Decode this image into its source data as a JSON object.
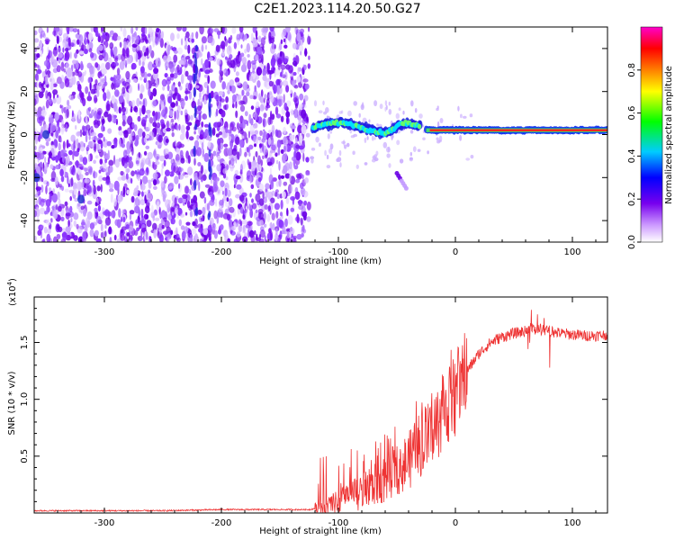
{
  "figure": {
    "title": "C2E1.2023.114.20.50.G27"
  },
  "colors": {
    "snr_line": "#ee3333",
    "axis": "#000000"
  },
  "chart_data": [
    {
      "type": "heatmap",
      "xlabel": "Height of straight line (km)",
      "ylabel": "Frequency (Hz)",
      "xlim": [
        -360,
        130
      ],
      "ylim": [
        -50,
        50
      ],
      "x_ticks": [
        -300,
        -200,
        -100,
        0,
        100
      ],
      "y_ticks": [
        -40,
        -20,
        0,
        20,
        40
      ],
      "grid": false,
      "colorbar": {
        "label": "Normalized spectral amplitude",
        "range": [
          0.0,
          1.0
        ],
        "ticks": [
          "0.0",
          "0.2",
          "0.4",
          "0.6",
          "0.8"
        ],
        "colormap": "rainbow"
      },
      "features": {
        "noise_region_x": [
          -360,
          -125
        ],
        "carrier_line_freq": 2,
        "carrier_start_x": -25,
        "wavy_segment_x": [
          -122,
          -30
        ],
        "spur_x": [
          -50,
          -42
        ],
        "spur_freq": [
          -18,
          -25
        ]
      }
    },
    {
      "type": "line",
      "xlabel": "Height of straight line (km)",
      "ylabel": "SNR (10 * v/v)",
      "y_multiplier": "(x10",
      "y_multiplier_exp": "4",
      "y_multiplier_close": ")",
      "xlim": [
        -360,
        130
      ],
      "ylim": [
        0,
        1.9
      ],
      "x_ticks": [
        -300,
        -200,
        -100,
        0,
        100
      ],
      "y_ticks": [
        0.5,
        1.0,
        1.5
      ],
      "y_tick_labels": [
        "0.5",
        "1.0",
        "1.5"
      ],
      "grid": false,
      "series": [
        {
          "x": [
            -360,
            -300,
            -250,
            -200,
            -150,
            -125,
            -110,
            -100,
            -90,
            -80,
            -70,
            -60,
            -50,
            -40,
            -30,
            -20,
            -10,
            0,
            10,
            20,
            30,
            40,
            50,
            60,
            70,
            80,
            90,
            100,
            110,
            120,
            130
          ],
          "y": [
            0.02,
            0.02,
            0.02,
            0.03,
            0.03,
            0.03,
            0.06,
            0.1,
            0.15,
            0.18,
            0.24,
            0.3,
            0.4,
            0.45,
            0.6,
            0.7,
            0.9,
            1.05,
            1.25,
            1.4,
            1.5,
            1.55,
            1.58,
            1.6,
            1.62,
            1.6,
            1.58,
            1.57,
            1.56,
            1.56,
            1.57
          ]
        }
      ]
    }
  ]
}
